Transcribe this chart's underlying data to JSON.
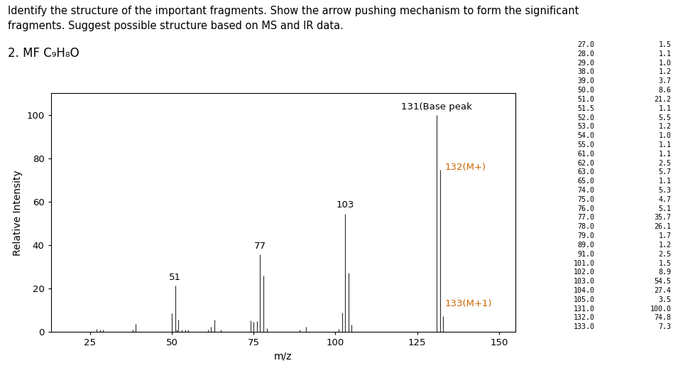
{
  "title_line1": "Identify the structure of the important fragments. Show the arrow pushing mechanism to form the significant",
  "title_line2": "fragments. Suggest possible structure based on MS and IR data.",
  "subtitle": "2. MF C₉H₈O",
  "peaks": [
    [
      27,
      1.5
    ],
    [
      28,
      1.1
    ],
    [
      29,
      1.0
    ],
    [
      38,
      1.2
    ],
    [
      39,
      3.7
    ],
    [
      50,
      8.6
    ],
    [
      51,
      21.2
    ],
    [
      51.5,
      1.1
    ],
    [
      52,
      5.5
    ],
    [
      53,
      1.2
    ],
    [
      54,
      1.0
    ],
    [
      55,
      1.1
    ],
    [
      61,
      1.1
    ],
    [
      62,
      2.5
    ],
    [
      63,
      5.7
    ],
    [
      65,
      1.1
    ],
    [
      74,
      5.3
    ],
    [
      75,
      4.7
    ],
    [
      76,
      5.1
    ],
    [
      77,
      35.7
    ],
    [
      78,
      26.1
    ],
    [
      79,
      1.7
    ],
    [
      89,
      1.2
    ],
    [
      91,
      2.5
    ],
    [
      101,
      1.5
    ],
    [
      102,
      8.9
    ],
    [
      103,
      54.5
    ],
    [
      104,
      27.4
    ],
    [
      105,
      3.5
    ],
    [
      131,
      100.0
    ],
    [
      132,
      74.8
    ],
    [
      133,
      7.3
    ]
  ],
  "xlabel": "m/z",
  "ylabel": "Relative Intensity",
  "xlim": [
    13,
    155
  ],
  "ylim": [
    0,
    110
  ],
  "xticks": [
    25,
    50,
    75,
    100,
    125,
    150
  ],
  "yticks": [
    0,
    20,
    40,
    60,
    80,
    100
  ],
  "bar_color": "#333333",
  "label_51": "51",
  "label_77": "77",
  "label_103": "103",
  "label_131": "131(Base peak",
  "label_132": "132(M+)",
  "label_133": "133(M+1)",
  "orange_color": "#cc6600",
  "table_data": [
    [
      "27.0",
      "1.5"
    ],
    [
      "28.0",
      "1.1"
    ],
    [
      "29.0",
      "1.0"
    ],
    [
      "38.0",
      "1.2"
    ],
    [
      "39.0",
      "3.7"
    ],
    [
      "50.0",
      "8.6"
    ],
    [
      "51.0",
      "21.2"
    ],
    [
      "51.5",
      "1.1"
    ],
    [
      "52.0",
      "5.5"
    ],
    [
      "53.0",
      "1.2"
    ],
    [
      "54.0",
      "1.0"
    ],
    [
      "55.0",
      "1.1"
    ],
    [
      "61.0",
      "1.1"
    ],
    [
      "62.0",
      "2.5"
    ],
    [
      "63.0",
      "5.7"
    ],
    [
      "65.0",
      "1.1"
    ],
    [
      "74.0",
      "5.3"
    ],
    [
      "75.0",
      "4.7"
    ],
    [
      "76.0",
      "5.1"
    ],
    [
      "77.0",
      "35.7"
    ],
    [
      "78.0",
      "26.1"
    ],
    [
      "79.0",
      "1.7"
    ],
    [
      "89.0",
      "1.2"
    ],
    [
      "91.0",
      "2.5"
    ],
    [
      "101.0",
      "1.5"
    ],
    [
      "102.0",
      "8.9"
    ],
    [
      "103.0",
      "54.5"
    ],
    [
      "104.0",
      "27.4"
    ],
    [
      "105.0",
      "3.5"
    ],
    [
      "131.0",
      "100.0"
    ],
    [
      "132.0",
      "74.8"
    ],
    [
      "133.0",
      "7.3"
    ]
  ],
  "title_fontsize": 10.5,
  "subtitle_fontsize": 12,
  "axis_label_fontsize": 10,
  "tick_fontsize": 9.5,
  "peak_label_fontsize": 9.5,
  "table_fontsize": 7.2,
  "background_color": "#ffffff"
}
